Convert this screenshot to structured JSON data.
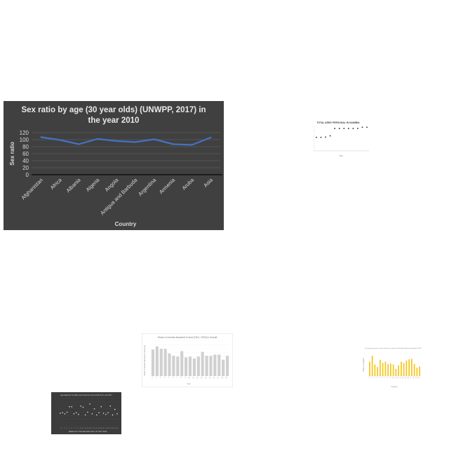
{
  "chart_data": [
    {
      "type": "line",
      "title": "Sex ratio by age (30 year olds) (UNWPP, 2017) in the year 2010",
      "title_lines": [
        "Sex ratio by age (30 year olds) (UNWPP, 2017) in",
        "the year 2010"
      ],
      "xlabel": "Country",
      "ylabel": "Sex ratio",
      "categories": [
        "Afghanistan",
        "Africa",
        "Albania",
        "Algeria",
        "Angola",
        "Antigua and Barbuda",
        "Argentina",
        "Armenia",
        "Aruba",
        "Asia"
      ],
      "series": [
        {
          "values": [
            107,
            99,
            87,
            102,
            96,
            93,
            101,
            87,
            85,
            106
          ]
        }
      ],
      "ylim": [
        0,
        120
      ],
      "yticks": [
        0,
        20,
        40,
        60,
        80,
        100,
        120
      ],
      "grid": true,
      "colors": {
        "background": "#404040",
        "line": "#4472c4",
        "text": "#d9d9d9",
        "grid": "#5a5a5a"
      }
    },
    {
      "type": "scatter",
      "title": "TOTAL ARMY PERSONAL IN NAMIBIA",
      "xlabel": "Year",
      "ylabel": "",
      "x": [
        1,
        2,
        3,
        4,
        5,
        6,
        7,
        8,
        9,
        10,
        11,
        12
      ],
      "values": [
        55,
        55,
        56,
        61,
        91,
        91,
        91,
        91,
        91,
        91,
        96,
        96
      ],
      "ylim": [
        0,
        100
      ],
      "colors": {
        "background": "#ffffff",
        "marker": "#222222"
      }
    },
    {
      "type": "bar",
      "title": "Share of cereals allocated to food (FAO, 2020) in Kuwait",
      "xlabel": "Year",
      "ylabel": "Share of cereals allocated to food (%)",
      "categories": [
        "1",
        "2",
        "3",
        "4",
        "5",
        "6",
        "7",
        "8",
        "9",
        "10",
        "11",
        "12",
        "13",
        "14",
        "15",
        "16",
        "17",
        "18",
        "19"
      ],
      "values": [
        68,
        76,
        70,
        70,
        58,
        52,
        50,
        64,
        48,
        50,
        45,
        50,
        62,
        52,
        52,
        55,
        55,
        42,
        52
      ],
      "ylim": [
        0,
        90
      ],
      "colors": {
        "background": "#ffffff",
        "bar": "#d0d0d0"
      }
    },
    {
      "type": "bar",
      "title": "% country measures to the activity on commercial health reporting standard in 2020",
      "xlabel": "Country",
      "ylabel": "Share of countries",
      "categories": [
        "1",
        "2",
        "3",
        "4",
        "5",
        "6",
        "7",
        "8",
        "9",
        "10",
        "11",
        "12",
        "13",
        "14",
        "15",
        "16",
        "17",
        "18",
        "19",
        "20"
      ],
      "values": [
        60,
        85,
        48,
        38,
        68,
        55,
        60,
        50,
        52,
        48,
        30,
        45,
        60,
        55,
        65,
        70,
        72,
        50,
        35,
        40
      ],
      "ylim": [
        0,
        100
      ],
      "colors": {
        "background": "#ffffff",
        "bar": "#f5c518"
      }
    },
    {
      "type": "scatter",
      "title": "Age-adjusted mortality rate during the second half of the year 2017",
      "xlabel": "WEEKS OF THE SECOND HALF OF THE YEAR",
      "ylabel": "",
      "x": [
        1,
        2,
        3,
        4,
        5,
        6,
        7,
        8,
        9,
        10,
        11,
        12,
        13,
        14,
        15,
        16,
        17,
        18,
        19,
        20,
        21,
        22,
        23,
        24,
        25,
        26
      ],
      "values": [
        46,
        48,
        44,
        50,
        70,
        70,
        44,
        48,
        42,
        72,
        68,
        40,
        50,
        80,
        44,
        62,
        40,
        48,
        70,
        46,
        42,
        48,
        72,
        40,
        60,
        44
      ],
      "ylim": [
        0,
        100
      ],
      "colors": {
        "background": "#3c3c3c",
        "marker": "#e0e0e0"
      }
    }
  ]
}
